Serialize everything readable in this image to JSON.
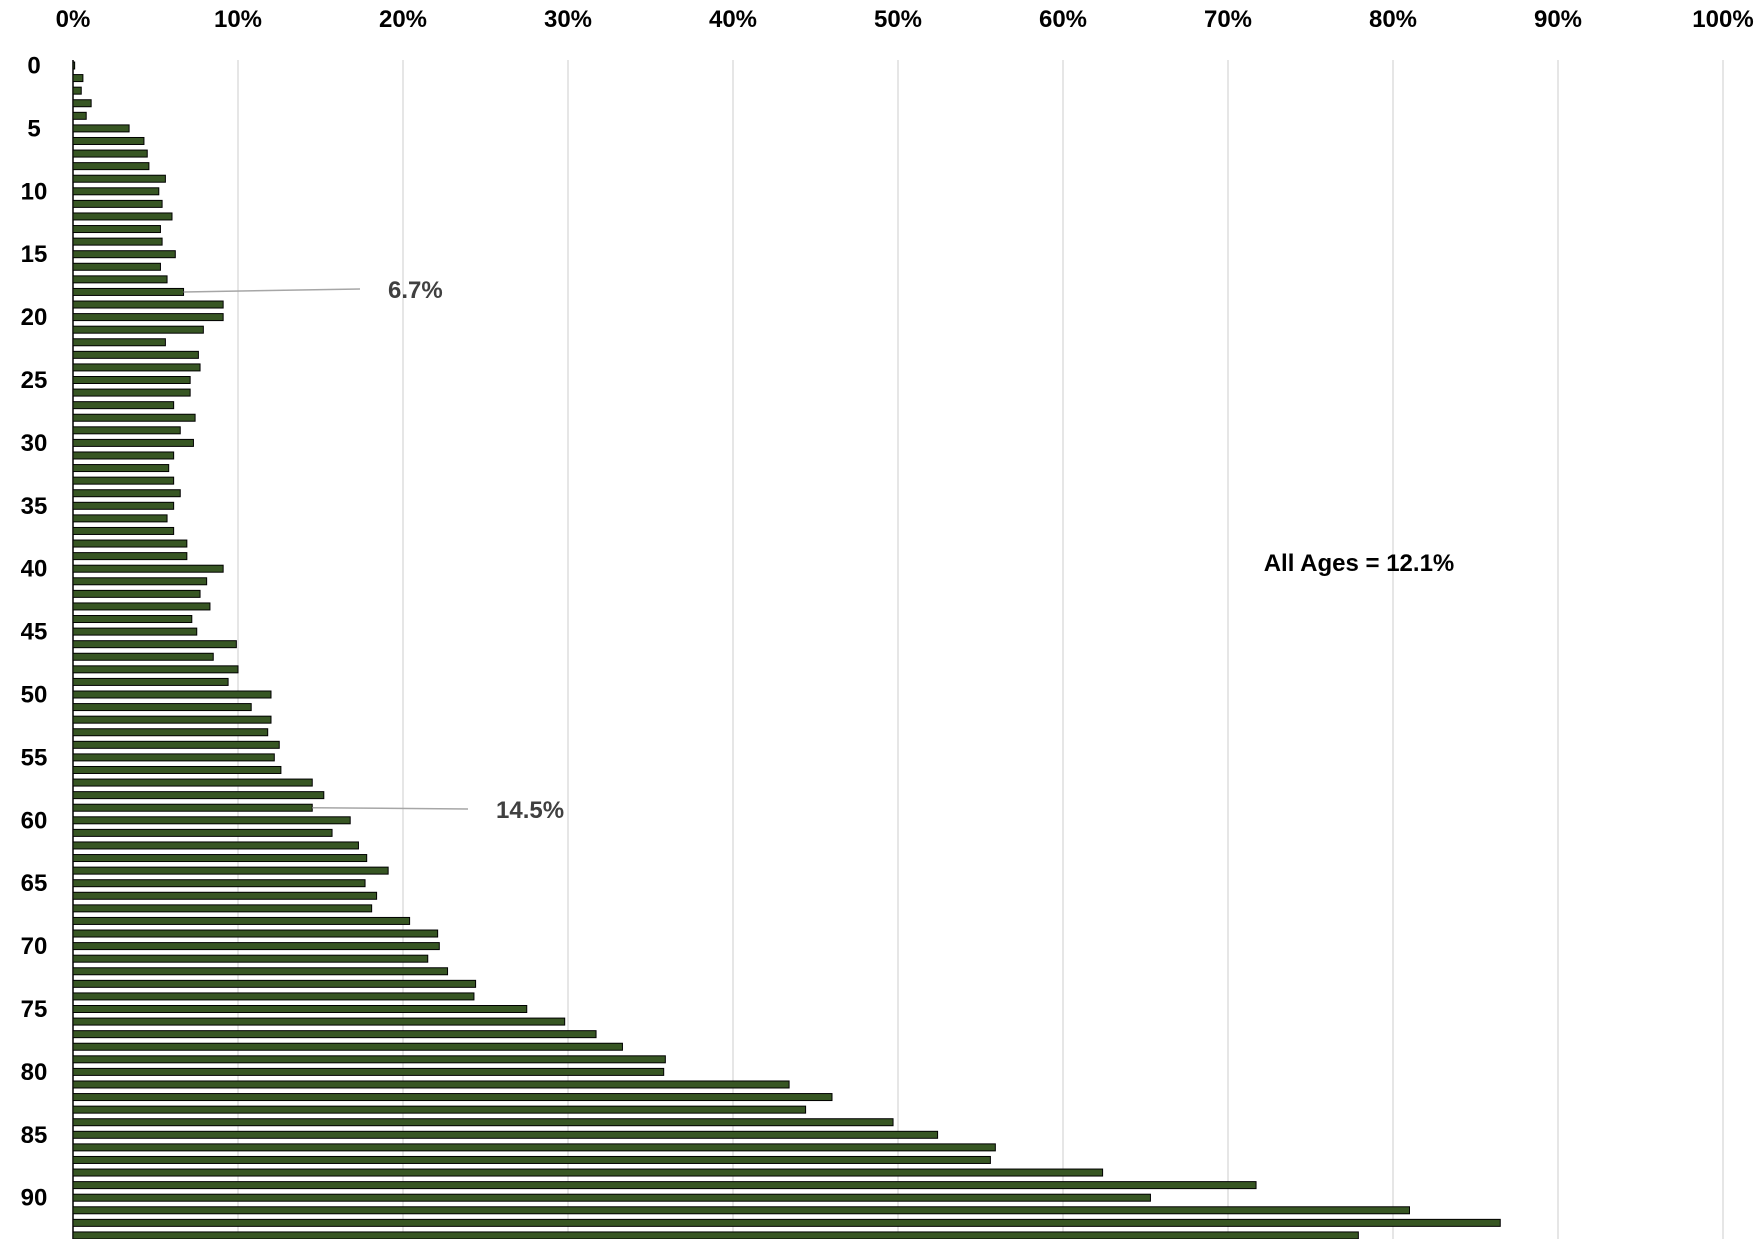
{
  "chart_data": {
    "type": "bar",
    "orientation": "horizontal",
    "x_ticks": [
      "0%",
      "10%",
      "20%",
      "30%",
      "40%",
      "50%",
      "60%",
      "70%",
      "80%",
      "90%",
      "100%"
    ],
    "xlim": [
      0,
      100
    ],
    "y_ticks": [
      "0",
      "5",
      "10",
      "15",
      "20",
      "25",
      "30",
      "35",
      "40",
      "45",
      "50",
      "55",
      "60",
      "65",
      "70",
      "75",
      "80",
      "85",
      "90"
    ],
    "grid": true,
    "bar_color": "#375623",
    "bar_edge_color": "#000000",
    "categories": [
      0,
      1,
      2,
      3,
      4,
      5,
      6,
      7,
      8,
      9,
      10,
      11,
      12,
      13,
      14,
      15,
      16,
      17,
      18,
      19,
      20,
      21,
      22,
      23,
      24,
      25,
      26,
      27,
      28,
      29,
      30,
      31,
      32,
      33,
      34,
      35,
      36,
      37,
      38,
      39,
      40,
      41,
      42,
      43,
      44,
      45,
      46,
      47,
      48,
      49,
      50,
      51,
      52,
      53,
      54,
      55,
      56,
      57,
      58,
      59,
      60,
      61,
      62,
      63,
      64,
      65,
      66,
      67,
      68,
      69,
      70,
      71,
      72,
      73,
      74,
      75,
      76,
      77,
      78,
      79,
      80,
      81,
      82,
      83,
      84,
      85,
      86,
      87,
      88,
      89,
      90,
      91,
      92,
      93
    ],
    "values": [
      0.1,
      0.6,
      0.5,
      1.1,
      0.8,
      3.4,
      4.3,
      4.5,
      4.6,
      5.6,
      5.2,
      5.4,
      6.0,
      5.3,
      5.4,
      6.2,
      5.3,
      5.7,
      6.7,
      9.1,
      9.1,
      7.9,
      5.6,
      7.6,
      7.7,
      7.1,
      7.1,
      6.1,
      7.4,
      6.5,
      7.3,
      6.1,
      5.8,
      6.1,
      6.5,
      6.1,
      5.7,
      6.1,
      6.9,
      6.9,
      9.1,
      8.1,
      7.7,
      8.3,
      7.2,
      7.5,
      9.9,
      8.5,
      10.0,
      9.4,
      12.0,
      10.8,
      12.0,
      11.8,
      12.5,
      12.2,
      12.6,
      14.5,
      15.2,
      14.5,
      16.8,
      15.7,
      17.3,
      17.8,
      19.1,
      17.7,
      18.4,
      18.1,
      20.4,
      22.1,
      22.2,
      21.5,
      22.7,
      24.4,
      24.3,
      27.5,
      29.8,
      31.7,
      33.3,
      35.9,
      35.8,
      43.4,
      46.0,
      44.4,
      49.7,
      52.4,
      55.9,
      55.6,
      62.4,
      71.7,
      65.3,
      81.0,
      86.5,
      77.9
    ],
    "annotations": [
      {
        "label": "6.7%",
        "age": 18
      },
      {
        "label": "14.5%",
        "age": 59
      }
    ],
    "summary_text": "All Ages = 12.1%"
  }
}
